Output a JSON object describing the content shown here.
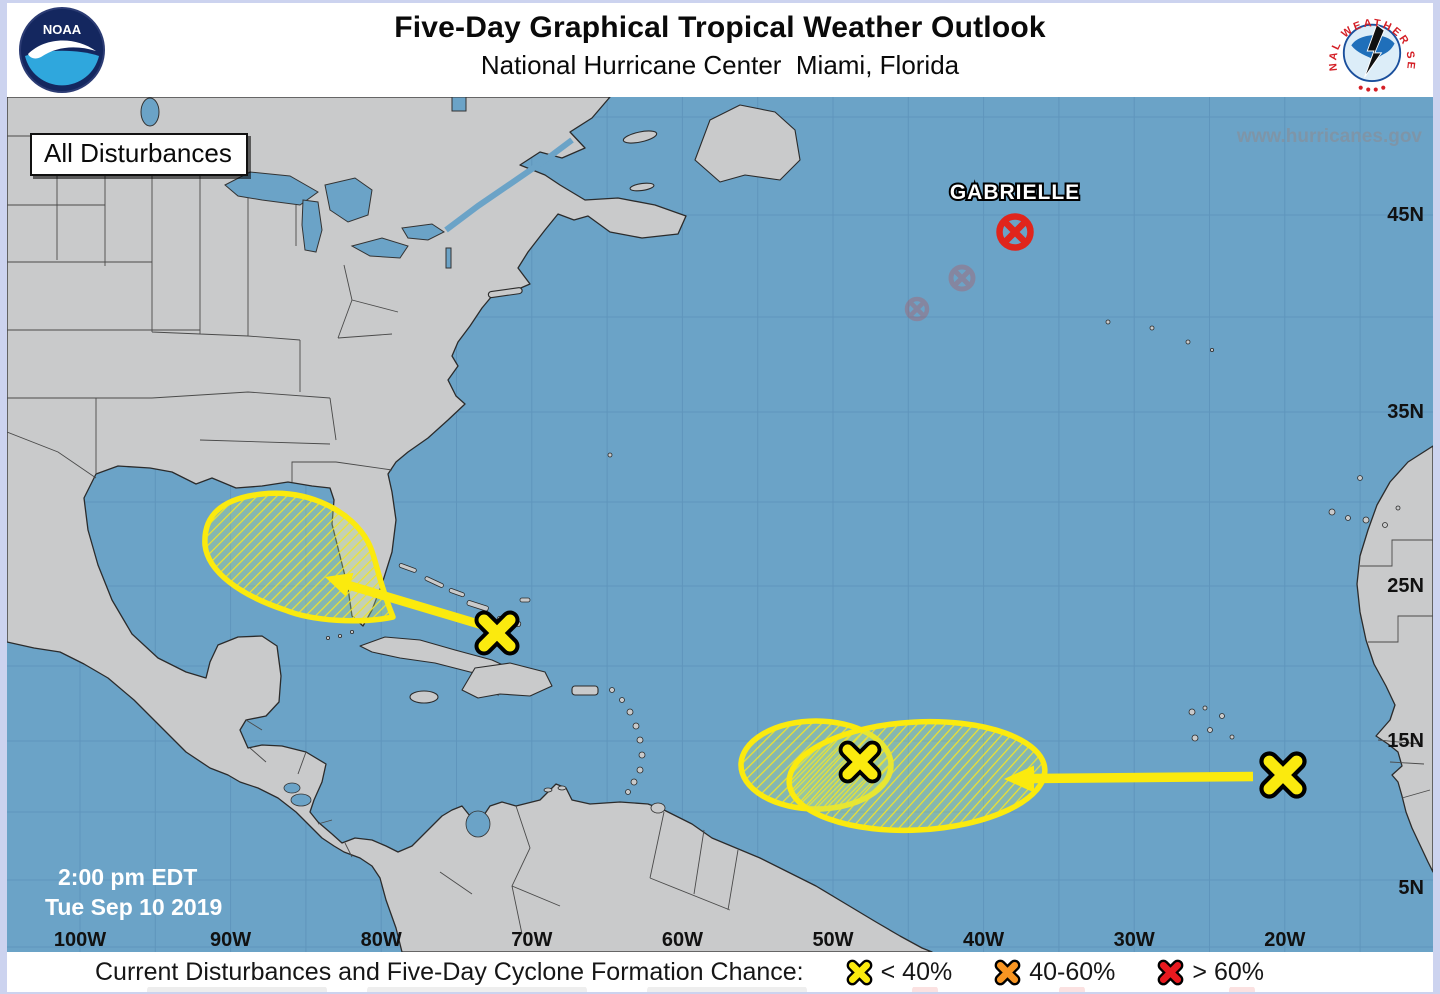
{
  "header": {
    "title": "Five-Day Graphical Tropical Weather Outlook",
    "subtitle": "National Hurricane Center  Miami, Florida",
    "noaa_logo_text": "NOAA",
    "nws_circular_text": "NATIONAL WEATHER SERVICE"
  },
  "map": {
    "overlay_label": "All Disturbances",
    "watermark": "www.hurricanes.gov",
    "timestamp": {
      "line1": "2:00 pm EDT",
      "line2": "Tue Sep 10 2019"
    },
    "storm": {
      "name": "GABRIELLE",
      "symbol": "post-tropical-circle-x-icon",
      "color": "#e0251c"
    },
    "lat_labels": [
      "45N",
      "35N",
      "25N",
      "15N",
      "5N"
    ],
    "lon_labels": [
      "100W",
      "90W",
      "80W",
      "70W",
      "60W",
      "50W",
      "40W",
      "30W",
      "20W"
    ],
    "disturbances": [
      {
        "name": "gulf-of-mexico-disturbance",
        "marker": "yellow-x-icon",
        "area": "hatched-yellow-outlook-area",
        "chance_category": "< 40%"
      },
      {
        "name": "central-atlantic-disturbance",
        "marker": "yellow-x-icon",
        "area": "hatched-yellow-outlook-area",
        "chance_category": "< 40%"
      },
      {
        "name": "eastern-atlantic-disturbance",
        "marker": "yellow-x-icon",
        "area": "arrow-to-central-atlantic",
        "chance_category": "< 40%"
      }
    ],
    "colors": {
      "ocean": "#6ba3c7",
      "land": "#c9cacb",
      "grid": "#5f95bc",
      "yellow": "#fbea0e",
      "red": "#e0251c",
      "orange": "#f89522"
    }
  },
  "legend": {
    "caption": "Current Disturbances and Five-Day Cyclone Formation Chance:",
    "items": [
      {
        "symbol": "yellow-x-icon",
        "label": "< 40%",
        "color": "#fbea0e"
      },
      {
        "symbol": "orange-x-icon",
        "label": "40-60%",
        "color": "#f89522"
      },
      {
        "symbol": "red-x-icon",
        "label": "> 60%",
        "color": "#e8191f"
      }
    ]
  }
}
